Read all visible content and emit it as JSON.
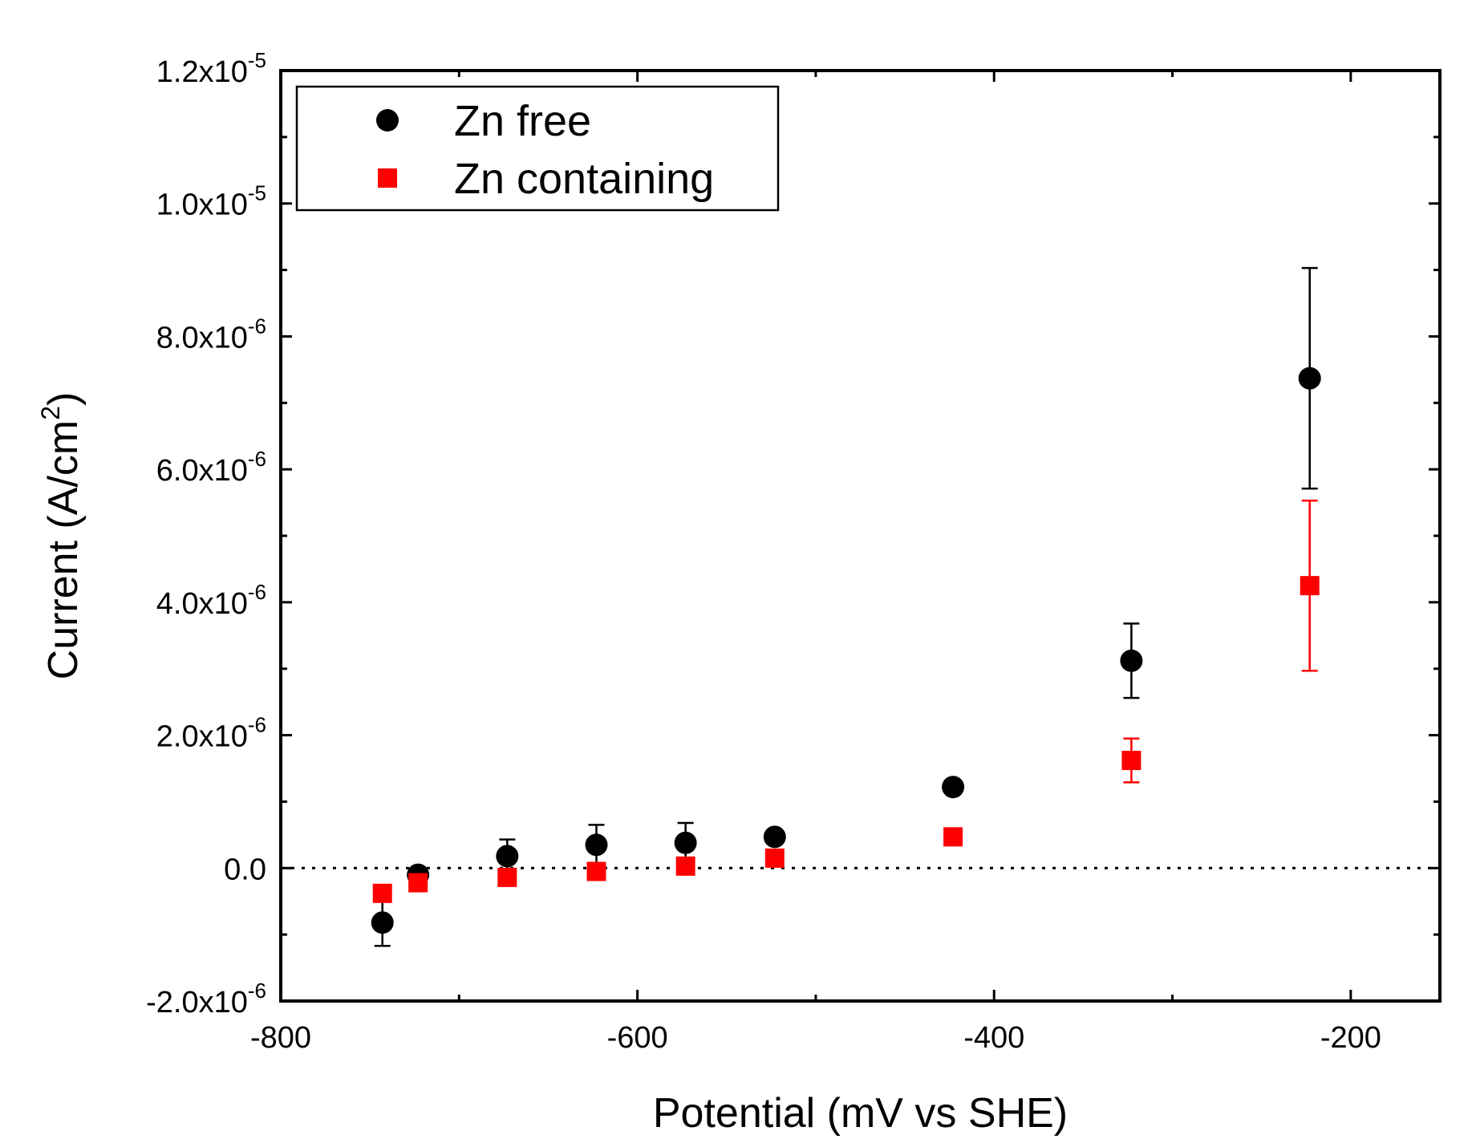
{
  "chart_data": {
    "type": "scatter",
    "xlabel": "Potential (mV vs SHE)",
    "ylabel": {
      "base": "Current (A/cm",
      "sup": "2",
      "tail": ")"
    },
    "xlim": [
      -800,
      -150
    ],
    "ylim": [
      -2e-06,
      1.2e-05
    ],
    "x_ticks": [
      -800,
      -600,
      -400,
      -200
    ],
    "x_tick_labels": [
      "-800",
      "-600",
      "-400",
      "-200"
    ],
    "y_ticks": [
      {
        "value": -2e-06,
        "mantissa": "-2.0x10",
        "exp": "-6"
      },
      {
        "value": 0,
        "mantissa": "0.0",
        "exp": ""
      },
      {
        "value": 2e-06,
        "mantissa": "2.0x10",
        "exp": "-6"
      },
      {
        "value": 4e-06,
        "mantissa": "4.0x10",
        "exp": "-6"
      },
      {
        "value": 6e-06,
        "mantissa": "6.0x10",
        "exp": "-6"
      },
      {
        "value": 8e-06,
        "mantissa": "8.0x10",
        "exp": "-6"
      },
      {
        "value": 1e-05,
        "mantissa": "1.0x10",
        "exp": "-5"
      },
      {
        "value": 1.2e-05,
        "mantissa": "1.2x10",
        "exp": "-5"
      }
    ],
    "reference_line": {
      "y": 0,
      "style": "dotted"
    },
    "legend_position": "top-left",
    "series": [
      {
        "name": "Zn free",
        "marker": "circle",
        "color": "#000000",
        "points": [
          {
            "x": -743,
            "y": -8.2e-07,
            "err": 3.5e-07
          },
          {
            "x": -723,
            "y": -1e-07,
            "err": 5e-08
          },
          {
            "x": -673,
            "y": 1.8e-07,
            "err": 2.5e-07
          },
          {
            "x": -623,
            "y": 3.5e-07,
            "err": 3e-07
          },
          {
            "x": -573,
            "y": 3.8e-07,
            "err": 3e-07
          },
          {
            "x": -523,
            "y": 4.7e-07,
            "err": 5e-08
          },
          {
            "x": -423,
            "y": 1.22e-06,
            "err": 5e-08
          },
          {
            "x": -323,
            "y": 3.12e-06,
            "err": 5.6e-07
          },
          {
            "x": -223,
            "y": 7.37e-06,
            "err": 1.66e-06
          }
        ]
      },
      {
        "name": "Zn containing",
        "marker": "square",
        "color": "#ff0000",
        "points": [
          {
            "x": -743,
            "y": -3.8e-07,
            "err": 5e-08
          },
          {
            "x": -723,
            "y": -2.2e-07,
            "err": 5e-08
          },
          {
            "x": -673,
            "y": -1.4e-07,
            "err": 5e-08
          },
          {
            "x": -623,
            "y": -5e-08,
            "err": 5e-08
          },
          {
            "x": -573,
            "y": 3e-08,
            "err": 5e-08
          },
          {
            "x": -523,
            "y": 1.5e-07,
            "err": 5e-08
          },
          {
            "x": -423,
            "y": 4.7e-07,
            "err": 5e-08
          },
          {
            "x": -323,
            "y": 1.62e-06,
            "err": 3.3e-07
          },
          {
            "x": -223,
            "y": 4.25e-06,
            "err": 1.28e-06
          }
        ]
      }
    ]
  }
}
